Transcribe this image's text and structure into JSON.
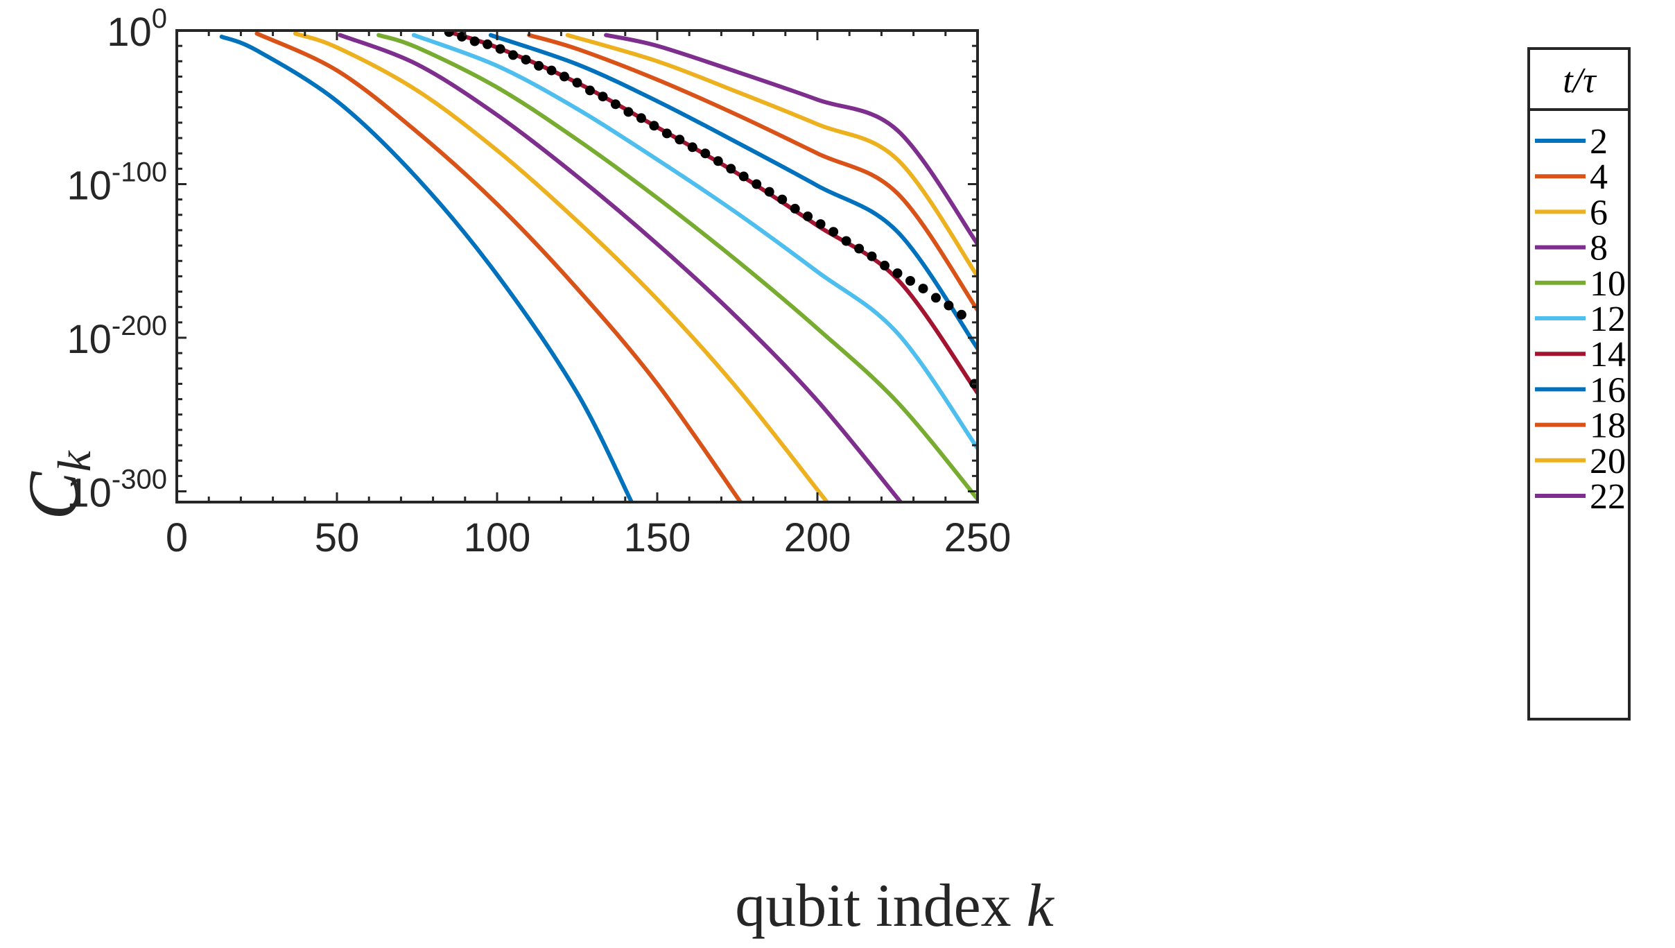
{
  "chart_data": {
    "type": "line",
    "xlabel_text": "qubit index",
    "xlabel_var": "k",
    "ylabel_var": "C",
    "ylabel_sub": "k",
    "xlim": [
      0,
      250
    ],
    "ylim_log10": [
      -307,
      0
    ],
    "x_ticks": [
      0,
      50,
      100,
      150,
      200,
      250
    ],
    "x_tick_labels": [
      "0",
      "50",
      "100",
      "150",
      "200",
      "250"
    ],
    "y_ticks_log10": [
      0,
      -100,
      -200,
      -300
    ],
    "y_tick_bases": [
      "10",
      "10",
      "10",
      "10"
    ],
    "y_tick_exponents": [
      "0",
      "-100",
      "-200",
      "-300"
    ],
    "legend_title": "t/τ",
    "legend_position": "outside-right",
    "series": [
      {
        "name": "2",
        "color": "#0072BD",
        "points": [
          [
            14,
            -4
          ],
          [
            25,
            -13
          ],
          [
            50,
            -46
          ],
          [
            75,
            -96
          ],
          [
            100,
            -159
          ],
          [
            125,
            -236
          ],
          [
            142,
            -307
          ]
        ]
      },
      {
        "name": "4",
        "color": "#D95319",
        "points": [
          [
            25,
            -2
          ],
          [
            50,
            -26
          ],
          [
            75,
            -66
          ],
          [
            100,
            -113
          ],
          [
            125,
            -168
          ],
          [
            150,
            -230
          ],
          [
            176,
            -307
          ]
        ]
      },
      {
        "name": "6",
        "color": "#EDB120",
        "points": [
          [
            37,
            -2
          ],
          [
            50,
            -11
          ],
          [
            75,
            -39
          ],
          [
            100,
            -78
          ],
          [
            125,
            -124
          ],
          [
            150,
            -175
          ],
          [
            175,
            -233
          ],
          [
            203,
            -307
          ]
        ]
      },
      {
        "name": "8",
        "color": "#7E2F8E",
        "points": [
          [
            51,
            -3
          ],
          [
            75,
            -22
          ],
          [
            100,
            -55
          ],
          [
            125,
            -95
          ],
          [
            150,
            -139
          ],
          [
            175,
            -187
          ],
          [
            200,
            -241
          ],
          [
            226,
            -307
          ]
        ]
      },
      {
        "name": "10",
        "color": "#77AC30",
        "points": [
          [
            63,
            -3
          ],
          [
            75,
            -11
          ],
          [
            100,
            -37
          ],
          [
            125,
            -71
          ],
          [
            150,
            -109
          ],
          [
            175,
            -150
          ],
          [
            200,
            -194
          ],
          [
            225,
            -242
          ],
          [
            250,
            -305
          ]
        ]
      },
      {
        "name": "12",
        "color": "#4DBEEE",
        "points": [
          [
            74,
            -3
          ],
          [
            100,
            -23
          ],
          [
            125,
            -51
          ],
          [
            150,
            -84
          ],
          [
            175,
            -119
          ],
          [
            200,
            -157
          ],
          [
            225,
            -197
          ],
          [
            250,
            -272
          ]
        ]
      },
      {
        "name": "14",
        "color": "#A2142F",
        "points": [
          [
            85,
            -1
          ],
          [
            100,
            -11
          ],
          [
            125,
            -34
          ],
          [
            150,
            -63
          ],
          [
            175,
            -93
          ],
          [
            200,
            -127
          ],
          [
            225,
            -162
          ],
          [
            250,
            -236
          ]
        ]
      },
      {
        "name": "16",
        "color": "#0072BD",
        "points": [
          [
            98,
            -3
          ],
          [
            125,
            -22
          ],
          [
            150,
            -46
          ],
          [
            175,
            -73
          ],
          [
            200,
            -101
          ],
          [
            225,
            -131
          ],
          [
            250,
            -207
          ]
        ]
      },
      {
        "name": "18",
        "color": "#D95319",
        "points": [
          [
            110,
            -3
          ],
          [
            125,
            -12
          ],
          [
            150,
            -32
          ],
          [
            175,
            -55
          ],
          [
            200,
            -80
          ],
          [
            225,
            -106
          ],
          [
            250,
            -182
          ]
        ]
      },
      {
        "name": "20",
        "color": "#EDB120",
        "points": [
          [
            122,
            -3
          ],
          [
            150,
            -20
          ],
          [
            175,
            -40
          ],
          [
            200,
            -61
          ],
          [
            225,
            -84
          ],
          [
            250,
            -160
          ]
        ]
      },
      {
        "name": "22",
        "color": "#7E2F8E",
        "points": [
          [
            134,
            -3
          ],
          [
            150,
            -10
          ],
          [
            175,
            -27
          ],
          [
            200,
            -45
          ],
          [
            225,
            -65
          ],
          [
            250,
            -139
          ]
        ]
      }
    ],
    "dotted_reference": {
      "color": "#000000",
      "x": [
        85,
        89,
        93,
        97,
        101,
        105,
        109,
        113,
        117,
        121,
        125,
        129,
        133,
        137,
        141,
        145,
        149,
        153,
        157,
        161,
        165,
        169,
        173,
        177,
        181,
        185,
        189,
        193,
        197,
        201,
        205,
        209,
        213,
        217,
        221,
        225,
        229,
        233,
        237,
        241,
        245,
        249
      ],
      "y": [
        -1,
        -4,
        -7,
        -9,
        -12,
        -16,
        -19,
        -23,
        -26,
        -30,
        -34,
        -39,
        -43,
        -48,
        -53,
        -57,
        -62,
        -67,
        -71,
        -76,
        -80,
        -85,
        -90,
        -95,
        -100,
        -105,
        -110,
        -116,
        -121,
        -126,
        -131,
        -137,
        -142,
        -147,
        -153,
        -158,
        -163,
        -168,
        -174,
        -179,
        -185,
        -230
      ]
    }
  }
}
